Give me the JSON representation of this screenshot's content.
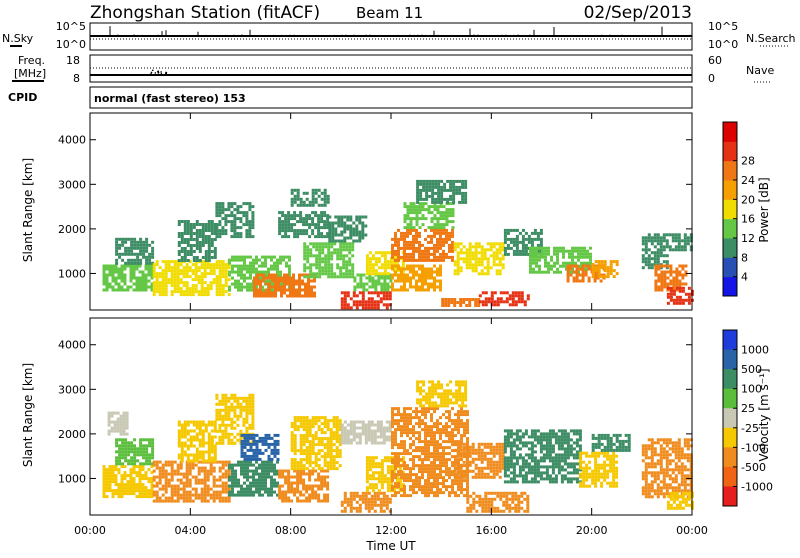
{
  "header": {
    "station": "Zhongshan Station (fitACF)",
    "beam": "Beam 11",
    "date": "02/Sep/2013"
  },
  "strips": {
    "nsky_label": "N.Sky",
    "nsky_ticks": [
      "10^5",
      "10^0"
    ],
    "nsearch_label": "N.Search",
    "nsearch_ticks": [
      "10^5",
      "10^0"
    ],
    "freq_label_1": "Freq.",
    "freq_label_2": "[MHz]",
    "freq_ticks": [
      "18",
      "8"
    ],
    "nave_label": "Nave",
    "nave_ticks": [
      "60",
      "0"
    ],
    "cpid_label": "CPID",
    "cpid_text": "normal (fast stereo) 153"
  },
  "axes": {
    "ylabel": "Slant Range [km]",
    "xlabel": "Time UT",
    "x_ticks": [
      "00:00",
      "04:00",
      "08:00",
      "12:00",
      "16:00",
      "20:00",
      "00:00"
    ],
    "y_ticks": [
      "1000",
      "2000",
      "3000",
      "4000"
    ]
  },
  "colorbars": {
    "power": {
      "label": "Power [dB]",
      "ticks": [
        "4",
        "8",
        "12",
        "16",
        "20",
        "24",
        "28"
      ],
      "colors": [
        "#1414e6",
        "#2850b4",
        "#3c8c64",
        "#64c846",
        "#f0dc00",
        "#f5a000",
        "#f07814",
        "#e63214",
        "#dc0000"
      ]
    },
    "velocity": {
      "label": "Velocity [m s⁻¹]",
      "ticks": [
        "1000",
        "500",
        "100",
        "25",
        "-25",
        "-100",
        "-500",
        "-1000"
      ],
      "colors": [
        "#1e3cdc",
        "#2a64a8",
        "#3c8c64",
        "#5abe3c",
        "#c8c8b4",
        "#f5c800",
        "#f08c1e",
        "#f06414",
        "#e61e1e"
      ]
    }
  },
  "chart_data": [
    {
      "type": "heatmap",
      "title": "Power",
      "xlabel": "Time UT",
      "ylabel": "Slant Range [km]",
      "xlim": [
        0,
        24
      ],
      "ylim": [
        180,
        4600
      ],
      "colorbar": "Power [dB]",
      "clim": [
        0,
        32
      ],
      "patches": [
        {
          "t0": 0.5,
          "t1": 2.5,
          "r0": 600,
          "r1": 1200,
          "v": 12
        },
        {
          "t0": 1.0,
          "t1": 2.5,
          "r0": 1200,
          "r1": 1800,
          "v": 8
        },
        {
          "t0": 2.5,
          "t1": 5.5,
          "r0": 500,
          "r1": 1300,
          "v": 16
        },
        {
          "t0": 3.5,
          "t1": 5.0,
          "r0": 1300,
          "r1": 2200,
          "v": 10
        },
        {
          "t0": 5.0,
          "t1": 6.5,
          "r0": 1800,
          "r1": 2600,
          "v": 8
        },
        {
          "t0": 5.5,
          "t1": 8.0,
          "r0": 600,
          "r1": 1400,
          "v": 14
        },
        {
          "t0": 6.5,
          "t1": 9.0,
          "r0": 500,
          "r1": 1000,
          "v": 22
        },
        {
          "t0": 7.5,
          "t1": 9.5,
          "r0": 1800,
          "r1": 2400,
          "v": 8
        },
        {
          "t0": 8.0,
          "t1": 9.5,
          "r0": 2500,
          "r1": 2900,
          "v": 8
        },
        {
          "t0": 8.5,
          "t1": 10.5,
          "r0": 900,
          "r1": 1700,
          "v": 14
        },
        {
          "t0": 9.5,
          "t1": 11.0,
          "r0": 1700,
          "r1": 2300,
          "v": 10
        },
        {
          "t0": 10.0,
          "t1": 12.0,
          "r0": 250,
          "r1": 600,
          "v": 28
        },
        {
          "t0": 10.5,
          "t1": 12.0,
          "r0": 600,
          "r1": 1000,
          "v": 12
        },
        {
          "t0": 11.0,
          "t1": 12.5,
          "r0": 1000,
          "r1": 1500,
          "v": 16
        },
        {
          "t0": 12.0,
          "t1": 14.0,
          "r0": 600,
          "r1": 1200,
          "v": 20
        },
        {
          "t0": 12.0,
          "t1": 14.5,
          "r0": 1300,
          "r1": 2000,
          "v": 24
        },
        {
          "t0": 12.5,
          "t1": 14.5,
          "r0": 2000,
          "r1": 2600,
          "v": 12
        },
        {
          "t0": 13.0,
          "t1": 15.0,
          "r0": 2600,
          "r1": 3100,
          "v": 8
        },
        {
          "t0": 14.5,
          "t1": 16.5,
          "r0": 1000,
          "r1": 1700,
          "v": 16
        },
        {
          "t0": 14.0,
          "t1": 15.5,
          "r0": 250,
          "r1": 450,
          "v": 22
        },
        {
          "t0": 15.5,
          "t1": 17.5,
          "r0": 300,
          "r1": 600,
          "v": 26
        },
        {
          "t0": 16.5,
          "t1": 18.0,
          "r0": 1400,
          "r1": 2000,
          "v": 8
        },
        {
          "t0": 17.5,
          "t1": 20.0,
          "r0": 1000,
          "r1": 1600,
          "v": 14
        },
        {
          "t0": 19.0,
          "t1": 20.5,
          "r0": 800,
          "r1": 1200,
          "v": 24
        },
        {
          "t0": 20.0,
          "t1": 21.0,
          "r0": 900,
          "r1": 1300,
          "v": 20
        },
        {
          "t0": 22.0,
          "t1": 23.0,
          "r0": 1100,
          "r1": 1500,
          "v": 10
        },
        {
          "t0": 22.5,
          "t1": 23.7,
          "r0": 600,
          "r1": 1200,
          "v": 22
        },
        {
          "t0": 23.0,
          "t1": 24.0,
          "r0": 300,
          "r1": 700,
          "v": 28
        },
        {
          "t0": 22.0,
          "t1": 24.0,
          "r0": 1500,
          "r1": 1900,
          "v": 8
        }
      ]
    },
    {
      "type": "heatmap",
      "title": "Velocity",
      "xlabel": "Time UT",
      "ylabel": "Slant Range [km]",
      "xlim": [
        0,
        24
      ],
      "ylim": [
        180,
        4600
      ],
      "colorbar": "Velocity [m s⁻¹]",
      "patches": [
        {
          "t0": 0.5,
          "t1": 2.5,
          "r0": 600,
          "r1": 1300,
          "v": -100
        },
        {
          "t0": 1.0,
          "t1": 2.5,
          "r0": 1300,
          "r1": 1900,
          "v": 25
        },
        {
          "t0": 0.7,
          "t1": 1.5,
          "r0": 2000,
          "r1": 2500,
          "v": -25
        },
        {
          "t0": 2.5,
          "t1": 5.5,
          "r0": 500,
          "r1": 1400,
          "v": -500
        },
        {
          "t0": 3.5,
          "t1": 5.0,
          "r0": 1400,
          "r1": 2300,
          "v": -100
        },
        {
          "t0": 5.0,
          "t1": 6.5,
          "r0": 1800,
          "r1": 2900,
          "v": -100
        },
        {
          "t0": 5.5,
          "t1": 7.5,
          "r0": 600,
          "r1": 1400,
          "v": 100
        },
        {
          "t0": 6.0,
          "t1": 7.5,
          "r0": 1400,
          "r1": 2000,
          "v": 500
        },
        {
          "t0": 7.5,
          "t1": 9.5,
          "r0": 500,
          "r1": 1200,
          "v": -500
        },
        {
          "t0": 8.0,
          "t1": 10.0,
          "r0": 1200,
          "r1": 2400,
          "v": -100
        },
        {
          "t0": 10.0,
          "t1": 12.0,
          "r0": 250,
          "r1": 700,
          "v": -500
        },
        {
          "t0": 10.0,
          "t1": 12.0,
          "r0": 1800,
          "r1": 2300,
          "v": -25
        },
        {
          "t0": 11.0,
          "t1": 12.5,
          "r0": 700,
          "r1": 1500,
          "v": -100
        },
        {
          "t0": 12.0,
          "t1": 15.0,
          "r0": 600,
          "r1": 2600,
          "v": -500
        },
        {
          "t0": 13.0,
          "t1": 15.0,
          "r0": 2600,
          "r1": 3200,
          "v": -100
        },
        {
          "t0": 14.5,
          "t1": 16.5,
          "r0": 1000,
          "r1": 1800,
          "v": -500
        },
        {
          "t0": 15.0,
          "t1": 17.5,
          "r0": 250,
          "r1": 700,
          "v": -500
        },
        {
          "t0": 16.5,
          "t1": 19.5,
          "r0": 900,
          "r1": 2100,
          "v": 100
        },
        {
          "t0": 19.5,
          "t1": 21.0,
          "r0": 800,
          "r1": 1600,
          "v": -100
        },
        {
          "t0": 20.0,
          "t1": 21.5,
          "r0": 1600,
          "r1": 2000,
          "v": 100
        },
        {
          "t0": 22.0,
          "t1": 24.0,
          "r0": 600,
          "r1": 1900,
          "v": -500
        },
        {
          "t0": 23.0,
          "t1": 24.0,
          "r0": 300,
          "r1": 700,
          "v": -100
        }
      ]
    }
  ]
}
